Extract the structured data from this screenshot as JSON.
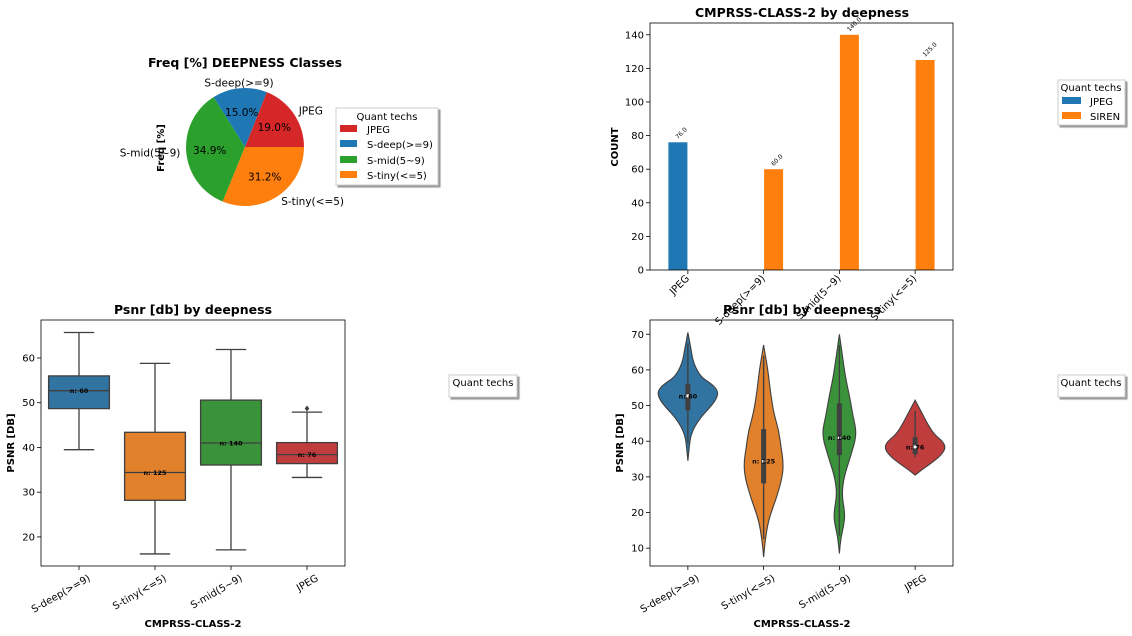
{
  "colors": {
    "blue": "#1f77b4",
    "orange": "#ff7f0e",
    "green": "#2ca02c",
    "red": "#d62728",
    "box_blue": "#3274a1",
    "box_orange": "#e1812c",
    "box_green": "#3a923a",
    "box_red": "#c03d3e"
  },
  "chart_data": [
    {
      "type": "pie",
      "title": "Freq [%] DEEPNESS Classes",
      "ylabel": "Freq [%]",
      "categories": [
        "JPEG",
        "S-deep(>=9)",
        "S-mid(5~9)",
        "S-tiny(<=5)"
      ],
      "values": [
        19.0,
        15.0,
        34.9,
        31.2
      ],
      "value_labels": [
        "19.0%",
        "15.0%",
        "34.9%",
        "31.2%"
      ],
      "legend": {
        "title": "Quant techs",
        "entries": [
          "JPEG",
          "S-deep(>=9)",
          "S-mid(5~9)",
          "S-tiny(<=5)"
        ],
        "placement": "right"
      }
    },
    {
      "type": "bar",
      "title": "CMPRSS-CLASS-2 by deepness",
      "ylabel": "COUNT",
      "categories": [
        "JPEG",
        "S-deep(>=9)",
        "S-mid(5~9)",
        "S-tiny(<=5)"
      ],
      "series": [
        {
          "name": "JPEG",
          "values": [
            76,
            null,
            null,
            null
          ]
        },
        {
          "name": "SIREN",
          "values": [
            null,
            60,
            140,
            125
          ]
        }
      ],
      "value_labels": [
        "76.0",
        "60.0",
        "140.0",
        "125.0"
      ],
      "yticks": [
        "0",
        "20",
        "40",
        "60",
        "80",
        "100",
        "120",
        "140"
      ],
      "ylim": [
        0,
        147
      ],
      "legend": {
        "title": "Quant techs",
        "entries": [
          "JPEG",
          "SIREN"
        ],
        "placement": "outside right"
      }
    },
    {
      "type": "box",
      "title": "Psnr [db] by deepness",
      "xlabel": "CMPRSS-CLASS-2",
      "ylabel": "PSNR [DB]",
      "categories": [
        "S-deep(>=9)",
        "S-tiny(<=5)",
        "S-mid(5~9)",
        "JPEG"
      ],
      "boxes": [
        {
          "whisker_low": 39.5,
          "q1": 48.7,
          "median": 52.7,
          "q3": 56.0,
          "whisker_high": 65.7,
          "n_label": "n: 60"
        },
        {
          "whisker_low": 16.2,
          "q1": 28.2,
          "median": 34.4,
          "q3": 43.4,
          "whisker_high": 58.8,
          "n_label": "n: 125"
        },
        {
          "whisker_low": 17.1,
          "q1": 36.1,
          "median": 41.0,
          "q3": 50.6,
          "whisker_high": 61.9,
          "n_label": "n: 140"
        },
        {
          "whisker_low": 33.3,
          "q1": 36.4,
          "median": 38.4,
          "q3": 41.1,
          "whisker_high": 47.9,
          "outliers": [
            48.7
          ],
          "n_label": "n: 76"
        }
      ],
      "yticks": [
        "20",
        "30",
        "40",
        "50",
        "60"
      ],
      "ylim": [
        13.5,
        68.5
      ],
      "legend": {
        "title": "Quant techs",
        "entries": [],
        "placement": "outside right"
      }
    },
    {
      "type": "violin",
      "title": "Psnr [db] by deepness",
      "xlabel": "CMPRSS-CLASS-2",
      "ylabel": "PSNR [DB]",
      "categories": [
        "S-deep(>=9)",
        "S-tiny(<=5)",
        "S-mid(5~9)",
        "JPEG"
      ],
      "violins": [
        {
          "low": 34.5,
          "high": 70.5,
          "q1": 48.7,
          "median": 52.7,
          "q3": 56.0,
          "n_label": "n: 60",
          "profile": [
            [
              34.5,
              0.0
            ],
            [
              38,
              0.04
            ],
            [
              42,
              0.1
            ],
            [
              46,
              0.35
            ],
            [
              50,
              0.78
            ],
            [
              52,
              0.95
            ],
            [
              54,
              1.0
            ],
            [
              56,
              0.8
            ],
            [
              58,
              0.42
            ],
            [
              62,
              0.18
            ],
            [
              66,
              0.1
            ],
            [
              70.5,
              0.0
            ]
          ]
        },
        {
          "low": 7.5,
          "high": 67.0,
          "q1": 28.2,
          "median": 34.4,
          "q3": 43.4,
          "n_label": "n: 125",
          "profile": [
            [
              7.5,
              0.0
            ],
            [
              12,
              0.05
            ],
            [
              18,
              0.16
            ],
            [
              24,
              0.42
            ],
            [
              30,
              0.62
            ],
            [
              34,
              0.65
            ],
            [
              38,
              0.58
            ],
            [
              43,
              0.5
            ],
            [
              48,
              0.33
            ],
            [
              54,
              0.22
            ],
            [
              60,
              0.14
            ],
            [
              67,
              0.0
            ]
          ]
        },
        {
          "low": 8.5,
          "high": 70.0,
          "q1": 36.1,
          "median": 41.0,
          "q3": 50.6,
          "n_label": "n: 140",
          "profile": [
            [
              8.5,
              0.0
            ],
            [
              13,
              0.05
            ],
            [
              17,
              0.16
            ],
            [
              20,
              0.18
            ],
            [
              25,
              0.08
            ],
            [
              30,
              0.15
            ],
            [
              36,
              0.38
            ],
            [
              42,
              0.58
            ],
            [
              47,
              0.45
            ],
            [
              52,
              0.35
            ],
            [
              58,
              0.2
            ],
            [
              64,
              0.1
            ],
            [
              70,
              0.0
            ]
          ]
        },
        {
          "low": 30.5,
          "high": 51.5,
          "q1": 36.4,
          "median": 38.4,
          "q3": 41.1,
          "n_label": "n: 76",
          "profile": [
            [
              30.5,
              0.0
            ],
            [
              32,
              0.22
            ],
            [
              35,
              0.72
            ],
            [
              37,
              0.94
            ],
            [
              38.5,
              1.0
            ],
            [
              40,
              0.9
            ],
            [
              42,
              0.62
            ],
            [
              45,
              0.4
            ],
            [
              48,
              0.22
            ],
            [
              51.5,
              0.0
            ]
          ]
        }
      ],
      "yticks": [
        "10",
        "20",
        "30",
        "40",
        "50",
        "60",
        "70"
      ],
      "ylim": [
        5.0,
        74.0
      ],
      "legend": {
        "title": "Quant techs",
        "entries": [],
        "placement": "outside right"
      }
    }
  ]
}
